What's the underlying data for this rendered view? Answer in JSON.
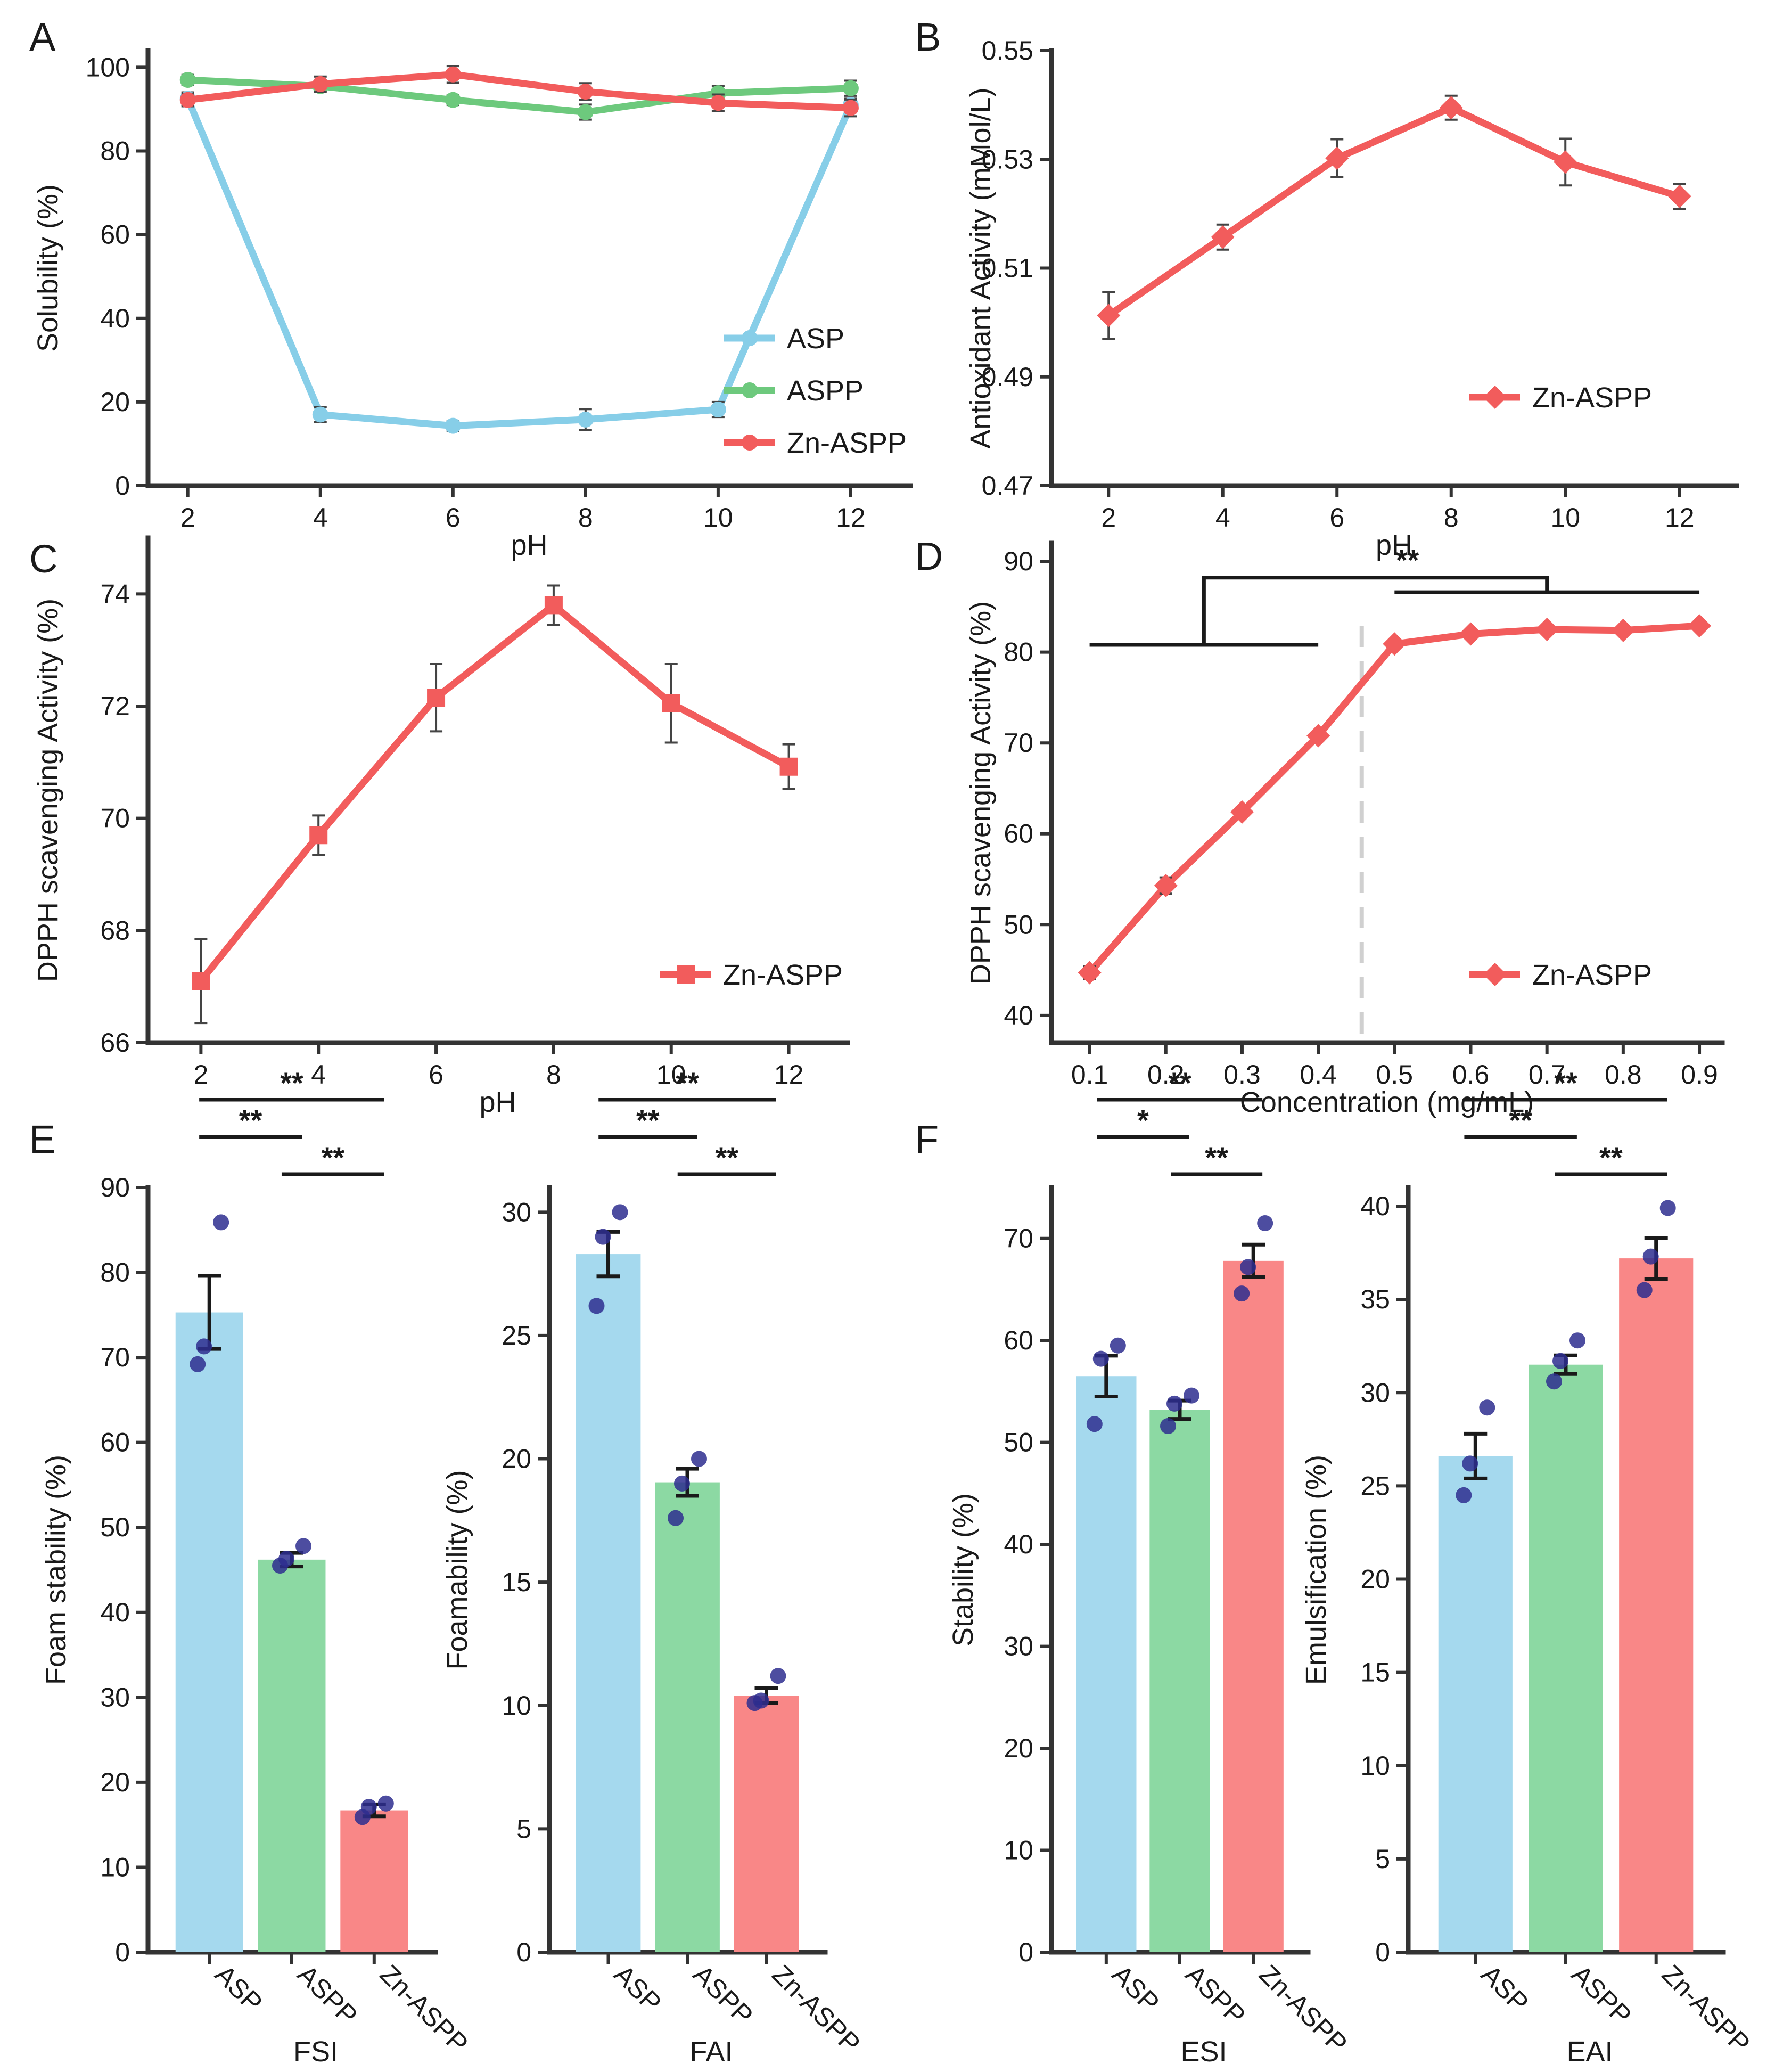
{
  "colors": {
    "ASP": "#87CEE8",
    "ASPP": "#6DC97D",
    "ZnASPP": "#F25C5C",
    "barASP": "#A5D9EE",
    "barASPP": "#8CD9A3",
    "barZn": "#F98787",
    "point": "#2e2e8f"
  },
  "chart_data": [
    {
      "id": "A",
      "panel_label": "A",
      "type": "line",
      "xlabel": "pH",
      "ylabel": "Solubility (%)",
      "x": [
        2,
        4,
        6,
        8,
        10,
        12
      ],
      "xlim": [
        1.4,
        12.9
      ],
      "ylim": [
        0,
        104
      ],
      "xticks": [
        "2",
        "4",
        "6",
        "8",
        "10",
        "12"
      ],
      "yticks": [
        "0",
        "20",
        "40",
        "60",
        "80",
        "100"
      ],
      "legend_position": "lower-right",
      "series": [
        {
          "name": "ASP",
          "color": "#87CEE8",
          "marker": "circle",
          "values": [
            92.5,
            17,
            14.3,
            15.8,
            18.2,
            91
          ],
          "errors": [
            1.5,
            1.8,
            1.2,
            2.5,
            1.8,
            1.5
          ]
        },
        {
          "name": "ASPP",
          "color": "#6DC97D",
          "marker": "circle",
          "values": [
            97,
            95.5,
            92.2,
            89.3,
            93.8,
            95
          ],
          "errors": [
            1.2,
            1.2,
            1.2,
            1.8,
            1.8,
            1.8
          ]
        },
        {
          "name": "Zn-ASPP",
          "color": "#F25C5C",
          "marker": "circle",
          "values": [
            92.2,
            96,
            98.3,
            94.2,
            91.5,
            90.3
          ],
          "errors": [
            1.5,
            1.8,
            2,
            2,
            2,
            2
          ]
        }
      ]
    },
    {
      "id": "B",
      "panel_label": "B",
      "type": "line",
      "xlabel": "pH",
      "ylabel": "Antioxidant Activity (mMol/L)",
      "x": [
        2,
        4,
        6,
        8,
        10,
        12
      ],
      "xlim": [
        1,
        13
      ],
      "ylim": [
        0.47,
        0.55
      ],
      "xticks": [
        "2",
        "4",
        "6",
        "8",
        "10",
        "12"
      ],
      "yticks": [
        "0.47",
        "0.49",
        "0.51",
        "0.53",
        "0.55"
      ],
      "legend_position": "lower-right",
      "series": [
        {
          "name": "Zn-ASPP",
          "color": "#F25C5C",
          "marker": "diamond",
          "values": [
            0.5013,
            0.5157,
            0.5302,
            0.5395,
            0.5295,
            0.5232
          ],
          "errors": [
            0.0043,
            0.0023,
            0.0035,
            0.0022,
            0.0043,
            0.0023
          ]
        }
      ]
    },
    {
      "id": "C",
      "panel_label": "C",
      "type": "line",
      "xlabel": "pH",
      "ylabel": "DPPH scavenging Activity (%)",
      "x": [
        2,
        4,
        6,
        8,
        10,
        12
      ],
      "xlim": [
        1.1,
        13
      ],
      "ylim": [
        66,
        75
      ],
      "xticks": [
        "2",
        "4",
        "6",
        "8",
        "10",
        "12"
      ],
      "yticks": [
        "66",
        "68",
        "70",
        "72",
        "74"
      ],
      "legend_position": "lower-right",
      "series": [
        {
          "name": "Zn-ASPP",
          "color": "#F25C5C",
          "marker": "square",
          "values": [
            67.1,
            69.7,
            72.15,
            73.8,
            72.05,
            70.92
          ],
          "errors": [
            0.75,
            0.35,
            0.6,
            0.35,
            0.7,
            0.4
          ]
        }
      ]
    },
    {
      "id": "D",
      "panel_label": "D",
      "type": "line",
      "xlabel": "Concentration (mg/mL)",
      "ylabel": "DPPH scavenging Activity (%)",
      "x": [
        0.1,
        0.2,
        0.3,
        0.4,
        0.5,
        0.6,
        0.7,
        0.8,
        0.9
      ],
      "xlim": [
        0.05,
        0.93
      ],
      "ylim": [
        37,
        92
      ],
      "xticks": [
        "0.1",
        "0.2",
        "0.3",
        "0.4",
        "0.5",
        "0.6",
        "0.7",
        "0.8",
        "0.9"
      ],
      "yticks": [
        "40",
        "50",
        "60",
        "70",
        "80",
        "90"
      ],
      "legend_position": "lower-right",
      "vline_x": 0.457,
      "significance": "**",
      "series": [
        {
          "name": "Zn-ASPP",
          "color": "#F25C5C",
          "marker": "diamond",
          "values": [
            44.7,
            54.3,
            62.4,
            70.8,
            80.9,
            82,
            82.5,
            82.4,
            82.9
          ],
          "errors": [
            0.7,
            0.9,
            0.5,
            0.5,
            0.4,
            0.4,
            0.4,
            0.3,
            0.4
          ]
        }
      ]
    },
    {
      "id": "E1",
      "panel_label": "E",
      "type": "bar",
      "xlabel": "FSI",
      "ylabel": "Foam stability (%)",
      "categories": [
        "ASP",
        "ASPP",
        "Zn-ASPP"
      ],
      "ylim": [
        0,
        90
      ],
      "yticks": [
        "0",
        "10",
        "20",
        "30",
        "40",
        "50",
        "60",
        "70",
        "80",
        "90"
      ],
      "values": [
        75.3,
        46.2,
        16.7
      ],
      "errors": [
        4.3,
        0.8,
        0.7
      ],
      "points": [
        [
          85.9,
          71.3,
          69.2
        ],
        [
          47.8,
          46.3,
          45.5
        ],
        [
          17.5,
          17.1,
          15.9
        ]
      ],
      "significance": [
        {
          "from": 0,
          "to": 2,
          "label": "**"
        },
        {
          "from": 0,
          "to": 1,
          "label": "**"
        },
        {
          "from": 1,
          "to": 2,
          "label": "**"
        }
      ]
    },
    {
      "id": "E2",
      "panel_label": "",
      "type": "bar",
      "xlabel": "FAI",
      "ylabel": "Foamability (%)",
      "categories": [
        "ASP",
        "ASPP",
        "Zn-ASPP"
      ],
      "ylim": [
        0,
        31
      ],
      "yticks": [
        "0",
        "5",
        "10",
        "15",
        "20",
        "25",
        "30"
      ],
      "values": [
        28.3,
        19.05,
        10.4
      ],
      "errors": [
        0.9,
        0.55,
        0.3
      ],
      "points": [
        [
          30,
          29,
          26.2
        ],
        [
          20,
          19,
          17.6
        ],
        [
          11.2,
          10.2,
          10.1
        ]
      ],
      "significance": [
        {
          "from": 0,
          "to": 2,
          "label": "**"
        },
        {
          "from": 0,
          "to": 1,
          "label": "**"
        },
        {
          "from": 1,
          "to": 2,
          "label": "**"
        }
      ]
    },
    {
      "id": "F1",
      "panel_label": "F",
      "type": "bar",
      "xlabel": "ESI",
      "ylabel": "Stability (%)",
      "categories": [
        "ASP",
        "ASPP",
        "Zn-ASPP"
      ],
      "ylim": [
        0,
        75
      ],
      "yticks": [
        "0",
        "10",
        "20",
        "30",
        "40",
        "50",
        "60",
        "70"
      ],
      "values": [
        56.5,
        53.2,
        67.8
      ],
      "errors": [
        2,
        0.9,
        1.6
      ],
      "points": [
        [
          59.5,
          58.2,
          51.8
        ],
        [
          54.6,
          53.8,
          51.6
        ],
        [
          71.5,
          67.2,
          64.6
        ]
      ],
      "significance": [
        {
          "from": 0,
          "to": 2,
          "label": "**"
        },
        {
          "from": 0,
          "to": 1,
          "label": "*"
        },
        {
          "from": 1,
          "to": 2,
          "label": "**"
        }
      ]
    },
    {
      "id": "F2",
      "panel_label": "",
      "type": "bar",
      "xlabel": "EAI",
      "ylabel": "Emulsification (%)",
      "categories": [
        "ASP",
        "ASPP",
        "Zn-ASPP"
      ],
      "ylim": [
        0,
        41
      ],
      "yticks": [
        "0",
        "5",
        "10",
        "15",
        "20",
        "25",
        "30",
        "35",
        "40"
      ],
      "values": [
        26.6,
        31.5,
        37.2
      ],
      "errors": [
        1.2,
        0.5,
        1.1
      ],
      "points": [
        [
          29.2,
          26.2,
          24.5
        ],
        [
          32.8,
          31.7,
          30.6
        ],
        [
          39.9,
          37.3,
          35.5
        ]
      ],
      "significance": [
        {
          "from": 0,
          "to": 2,
          "label": "**"
        },
        {
          "from": 0,
          "to": 1,
          "label": "**"
        },
        {
          "from": 1,
          "to": 2,
          "label": "**"
        }
      ]
    }
  ]
}
